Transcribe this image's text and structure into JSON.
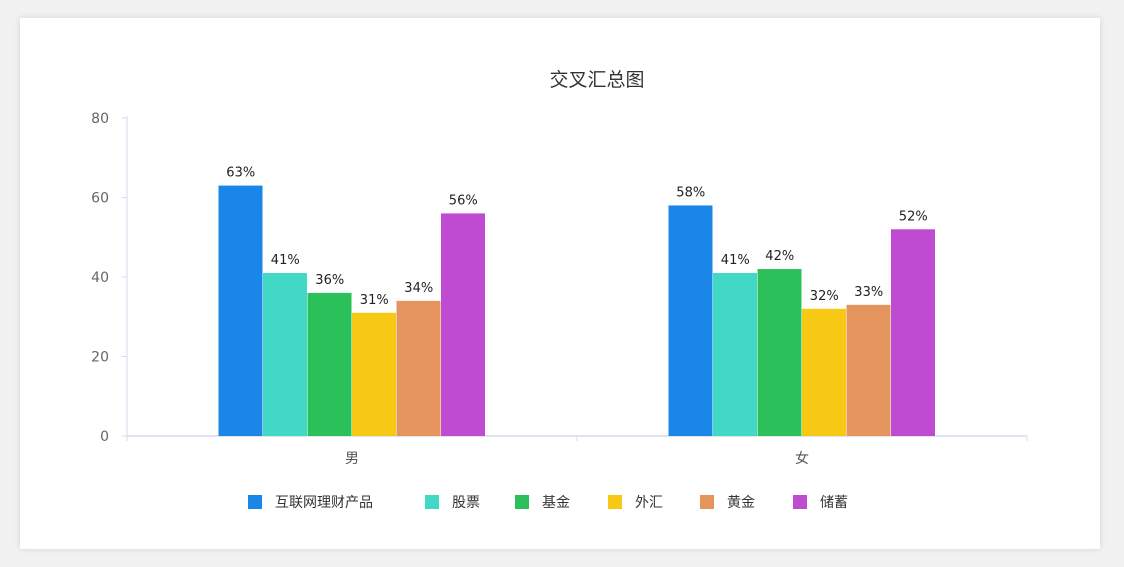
{
  "chart_data": {
    "type": "bar",
    "title": "交叉汇总图",
    "xlabel": "",
    "ylabel": "",
    "ylim": [
      0,
      80
    ],
    "yticks": [
      0,
      20,
      40,
      60,
      80
    ],
    "categories": [
      "男",
      "女"
    ],
    "legend_position": "bottom",
    "grid": false,
    "series": [
      {
        "name": "互联网理财产品",
        "color": "#1a87e8",
        "values": [
          63,
          58
        ],
        "labels": [
          "63%",
          "58%"
        ]
      },
      {
        "name": "股票",
        "color": "#41d8c6",
        "values": [
          41,
          41
        ],
        "labels": [
          "41%",
          "41%"
        ]
      },
      {
        "name": "基金",
        "color": "#2cc05a",
        "values": [
          36,
          42
        ],
        "labels": [
          "36%",
          "42%"
        ]
      },
      {
        "name": "外汇",
        "color": "#f7c915",
        "values": [
          31,
          32
        ],
        "labels": [
          "31%",
          "32%"
        ]
      },
      {
        "name": "黄金",
        "color": "#e4945c",
        "values": [
          34,
          33
        ],
        "labels": [
          "34%",
          "33%"
        ]
      },
      {
        "name": "储蓄",
        "color": "#bf4bd2",
        "values": [
          56,
          52
        ],
        "labels": [
          "56%",
          "52%"
        ]
      }
    ]
  }
}
